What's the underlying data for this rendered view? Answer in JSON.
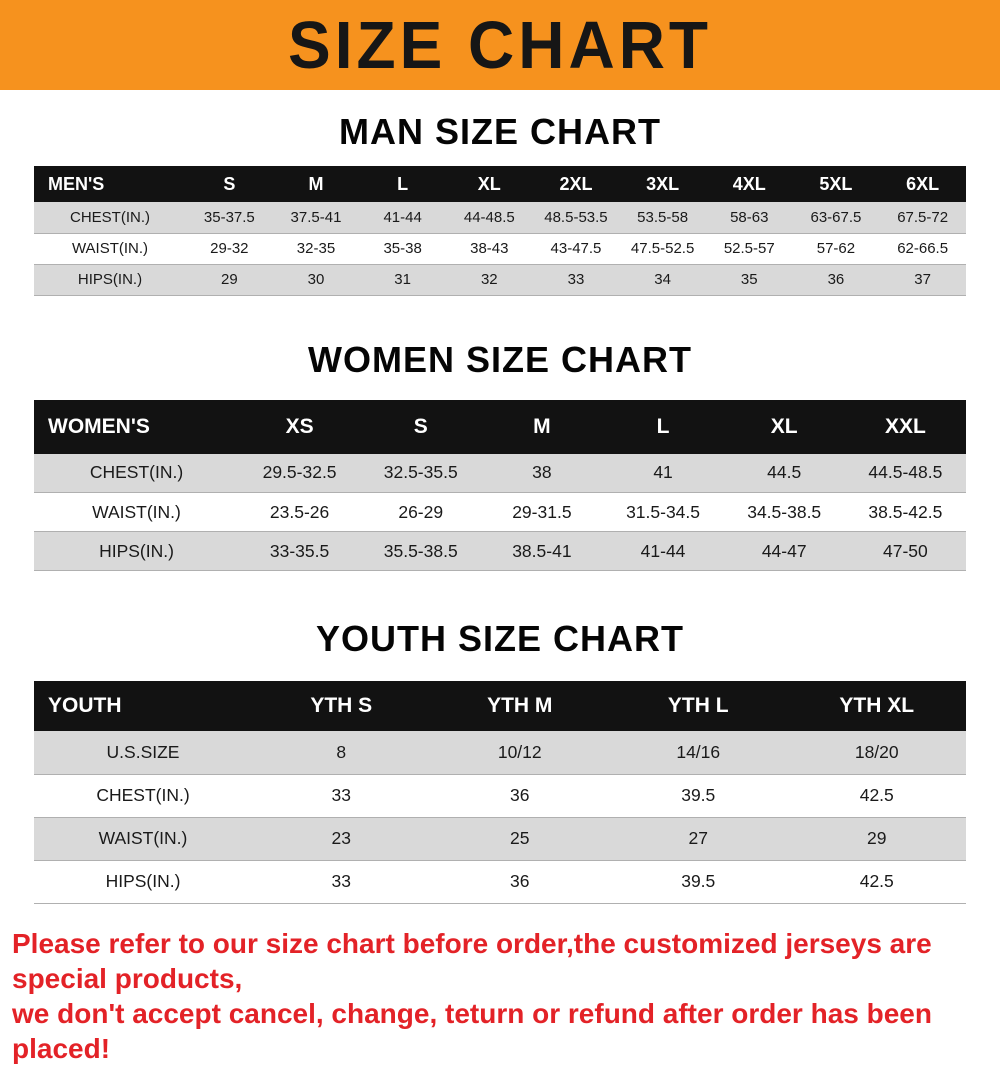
{
  "banner": {
    "title": "SIZE CHART"
  },
  "theme": {
    "banner_bg": "#f6921e",
    "header_bg": "#121212",
    "stripe": "#d9d9d9",
    "note_color": "#e32227"
  },
  "sections": [
    {
      "heading": "MAN SIZE CHART",
      "table": {
        "header": [
          "MEN'S",
          "S",
          "M",
          "L",
          "XL",
          "2XL",
          "3XL",
          "4XL",
          "5XL",
          "6XL"
        ],
        "rows": [
          [
            "CHEST(IN.)",
            "35-37.5",
            "37.5-41",
            "41-44",
            "44-48.5",
            "48.5-53.5",
            "53.5-58",
            "58-63",
            "63-67.5",
            "67.5-72"
          ],
          [
            "WAIST(IN.)",
            "29-32",
            "32-35",
            "35-38",
            "38-43",
            "43-47.5",
            "47.5-52.5",
            "52.5-57",
            "57-62",
            "62-66.5"
          ],
          [
            "HIPS(IN.)",
            "29",
            "30",
            "31",
            "32",
            "33",
            "34",
            "35",
            "36",
            "37"
          ]
        ]
      }
    },
    {
      "heading": "WOMEN SIZE CHART",
      "table": {
        "header": [
          "WOMEN'S",
          "XS",
          "S",
          "M",
          "L",
          "XL",
          "XXL"
        ],
        "rows": [
          [
            "CHEST(IN.)",
            "29.5-32.5",
            "32.5-35.5",
            "38",
            "41",
            "44.5",
            "44.5-48.5"
          ],
          [
            "WAIST(IN.)",
            "23.5-26",
            "26-29",
            "29-31.5",
            "31.5-34.5",
            "34.5-38.5",
            "38.5-42.5"
          ],
          [
            "HIPS(IN.)",
            "33-35.5",
            "35.5-38.5",
            "38.5-41",
            "41-44",
            "44-47",
            "47-50"
          ]
        ]
      }
    },
    {
      "heading": "YOUTH SIZE CHART",
      "table": {
        "header": [
          "YOUTH",
          "YTH S",
          "YTH M",
          "YTH L",
          "YTH XL"
        ],
        "rows": [
          [
            "U.S.SIZE",
            "8",
            "10/12",
            "14/16",
            "18/20"
          ],
          [
            "CHEST(IN.)",
            "33",
            "36",
            "39.5",
            "42.5"
          ],
          [
            "WAIST(IN.)",
            "23",
            "25",
            "27",
            "29"
          ],
          [
            "HIPS(IN.)",
            "33",
            "36",
            "39.5",
            "42.5"
          ]
        ]
      }
    }
  ],
  "footer": {
    "line1": "Please refer to our size chart before order,the customized jerseys are special products,",
    "line2": "we don't accept cancel, change, teturn or refund after order has been placed!"
  }
}
